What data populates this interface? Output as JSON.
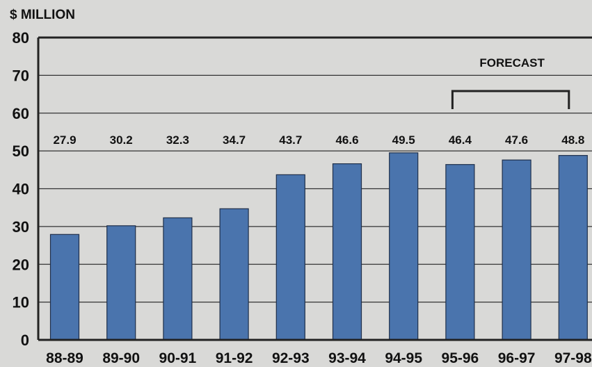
{
  "chart_data": {
    "type": "bar",
    "title": "",
    "unit_label": "$ MILLION",
    "xlabel": "",
    "ylabel": "",
    "ylim": [
      0,
      80
    ],
    "yticks": [
      0,
      10,
      20,
      30,
      40,
      50,
      60,
      70,
      80
    ],
    "grid": true,
    "categories": [
      "88-89",
      "89-90",
      "90-91",
      "91-92",
      "92-93",
      "93-94",
      "94-95",
      "95-96",
      "96-97",
      "97-98"
    ],
    "values": [
      27.9,
      30.2,
      32.3,
      34.7,
      43.7,
      46.6,
      49.5,
      46.4,
      47.6,
      48.8
    ],
    "value_labels": [
      "27.9",
      "30.2",
      "32.3",
      "34.7",
      "43.7",
      "46.6",
      "49.5",
      "46.4",
      "47.6",
      "48.8"
    ],
    "bar_color": "#4a74ad",
    "annotation": {
      "text": "FORECAST",
      "from_category": "95-96",
      "to_category": "97-98"
    }
  }
}
